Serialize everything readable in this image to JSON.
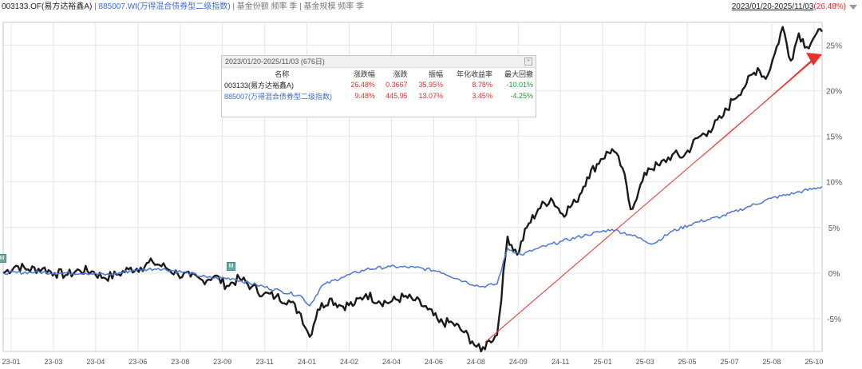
{
  "header": {
    "fund_code": "003133.OF(易方达裕鑫A)",
    "separator": "|",
    "index_code": "885007.WI(万得混合债券型二级指数)",
    "fund_share_label": "基金份额 频率 季",
    "fund_scale_label": "基金规模 频率 季",
    "date_range": "2023/01/20-2025/11/03",
    "total_return": "(26.48%)"
  },
  "stats_panel": {
    "title": "2023/01/20-2025/11/03 (676日)",
    "close_label": "×",
    "columns": [
      "名称",
      "涨跌幅",
      "涨跌",
      "振幅",
      "年化收益率",
      "最大回撤"
    ],
    "rows": [
      {
        "name": "003133(易方达裕鑫A)",
        "change_pct": "26.48%",
        "change": "0.3667",
        "amplitude": "35.95%",
        "annualized": "8.78%",
        "max_drawdown": "-10.01%"
      },
      {
        "name": "885007(万得混合债券型二级指数)",
        "change_pct": "9.48%",
        "change": "445.95",
        "amplitude": "13.07%",
        "annualized": "3.45%",
        "max_drawdown": "-4.25%"
      }
    ]
  },
  "markers": {
    "m1": "M",
    "m2": "M"
  },
  "colors": {
    "fund": "#1a1a1a",
    "index": "#4a78d8",
    "arrow": "#e8322b",
    "grid": "#e4e4e4",
    "positive": "#e0302a",
    "negative": "#1a9a3a"
  },
  "chart_data": {
    "type": "line",
    "yticks": [
      "25%",
      "20%",
      "15%",
      "10%",
      "5%",
      "0%",
      "-5%"
    ],
    "ytick_values": [
      25,
      20,
      15,
      10,
      5,
      0,
      -5
    ],
    "ylim": [
      -8.6,
      27.5
    ],
    "xticks": [
      "23-01",
      "23-03",
      "23-04",
      "23-06",
      "23-08",
      "23-09",
      "23-11",
      "24-01",
      "24-02",
      "24-04",
      "24-06",
      "24-08",
      "24-09",
      "24-11",
      "25-01",
      "25-03",
      "25-05",
      "25-07",
      "25-08",
      "25-10"
    ],
    "series": [
      {
        "name": "003133.OF(易方达裕鑫A)",
        "color": "#1a1a1a",
        "points": [
          [
            "2023-01-20",
            0.0
          ],
          [
            "2023-02-05",
            0.8
          ],
          [
            "2023-02-20",
            0.4
          ],
          [
            "2023-03-10",
            0.5
          ],
          [
            "2023-03-25",
            0.0
          ],
          [
            "2023-04-10",
            -0.2
          ],
          [
            "2023-04-25",
            0.3
          ],
          [
            "2023-05-10",
            0.2
          ],
          [
            "2023-05-25",
            -0.5
          ],
          [
            "2023-06-10",
            -0.2
          ],
          [
            "2023-06-25",
            0.4
          ],
          [
            "2023-07-10",
            0.6
          ],
          [
            "2023-07-25",
            1.2
          ],
          [
            "2023-08-10",
            0.6
          ],
          [
            "2023-08-25",
            -0.1
          ],
          [
            "2023-09-10",
            -0.4
          ],
          [
            "2023-09-25",
            -0.8
          ],
          [
            "2023-10-10",
            -0.3
          ],
          [
            "2023-10-25",
            -1.4
          ],
          [
            "2023-11-10",
            -0.6
          ],
          [
            "2023-11-25",
            -1.5
          ],
          [
            "2023-12-10",
            -2.3
          ],
          [
            "2023-12-25",
            -2.6
          ],
          [
            "2024-01-10",
            -3.0
          ],
          [
            "2024-01-25",
            -4.5
          ],
          [
            "2024-02-05",
            -7.0
          ],
          [
            "2024-02-15",
            -4.0
          ],
          [
            "2024-03-01",
            -2.8
          ],
          [
            "2024-03-15",
            -3.6
          ],
          [
            "2024-04-01",
            -3.4
          ],
          [
            "2024-04-15",
            -2.3
          ],
          [
            "2024-05-01",
            -3.1
          ],
          [
            "2024-05-15",
            -3.2
          ],
          [
            "2024-06-01",
            -2.6
          ],
          [
            "2024-06-15",
            -3.0
          ],
          [
            "2024-07-01",
            -4.0
          ],
          [
            "2024-07-15",
            -5.4
          ],
          [
            "2024-08-01",
            -5.5
          ],
          [
            "2024-08-15",
            -6.5
          ],
          [
            "2024-08-25",
            -7.5
          ],
          [
            "2024-09-05",
            -8.6
          ],
          [
            "2024-09-15",
            -7.4
          ],
          [
            "2024-09-25",
            -6.8
          ],
          [
            "2024-10-08",
            4.0
          ],
          [
            "2024-10-20",
            2.0
          ],
          [
            "2024-11-01",
            5.0
          ],
          [
            "2024-11-15",
            7.0
          ],
          [
            "2024-12-01",
            8.2
          ],
          [
            "2024-12-15",
            6.5
          ],
          [
            "2025-01-01",
            7.8
          ],
          [
            "2025-01-15",
            10.5
          ],
          [
            "2025-02-01",
            12.5
          ],
          [
            "2025-02-15",
            13.6
          ],
          [
            "2025-02-28",
            11.5
          ],
          [
            "2025-03-10",
            7.0
          ],
          [
            "2025-03-20",
            9.0
          ],
          [
            "2025-04-01",
            11.5
          ],
          [
            "2025-04-15",
            11.8
          ],
          [
            "2025-05-01",
            13.0
          ],
          [
            "2025-05-15",
            12.8
          ],
          [
            "2025-06-01",
            14.8
          ],
          [
            "2025-06-15",
            15.6
          ],
          [
            "2025-07-01",
            17.0
          ],
          [
            "2025-07-15",
            19.0
          ],
          [
            "2025-08-01",
            20.8
          ],
          [
            "2025-08-15",
            22.5
          ],
          [
            "2025-08-25",
            21.3
          ],
          [
            "2025-09-05",
            24.0
          ],
          [
            "2025-09-15",
            27.0
          ],
          [
            "2025-09-25",
            23.3
          ],
          [
            "2025-10-05",
            26.3
          ],
          [
            "2025-10-15",
            24.8
          ],
          [
            "2025-10-25",
            26.0
          ],
          [
            "2025-11-03",
            26.48
          ]
        ]
      },
      {
        "name": "885007.WI(万得混合债券型二级指数)",
        "color": "#4a78d8",
        "points": [
          [
            "2023-01-20",
            0.0
          ],
          [
            "2023-03-01",
            0.1
          ],
          [
            "2023-04-01",
            0.0
          ],
          [
            "2023-05-01",
            0.0
          ],
          [
            "2023-06-01",
            -0.2
          ],
          [
            "2023-07-01",
            0.3
          ],
          [
            "2023-08-01",
            0.5
          ],
          [
            "2023-09-01",
            0.1
          ],
          [
            "2023-10-01",
            -0.5
          ],
          [
            "2023-11-01",
            -0.6
          ],
          [
            "2023-12-01",
            -1.3
          ],
          [
            "2024-01-01",
            -2.0
          ],
          [
            "2024-01-25",
            -2.5
          ],
          [
            "2024-02-05",
            -3.6
          ],
          [
            "2024-02-20",
            -1.4
          ],
          [
            "2024-03-15",
            -0.5
          ],
          [
            "2024-04-15",
            0.4
          ],
          [
            "2024-05-15",
            0.7
          ],
          [
            "2024-06-15",
            0.6
          ],
          [
            "2024-07-15",
            0.2
          ],
          [
            "2024-08-15",
            -0.9
          ],
          [
            "2024-09-05",
            -1.5
          ],
          [
            "2024-09-25",
            -1.2
          ],
          [
            "2024-10-08",
            2.7
          ],
          [
            "2024-10-25",
            2.0
          ],
          [
            "2024-11-15",
            2.7
          ],
          [
            "2024-12-15",
            3.5
          ],
          [
            "2025-01-15",
            4.2
          ],
          [
            "2025-02-15",
            4.8
          ],
          [
            "2025-03-10",
            4.2
          ],
          [
            "2025-04-07",
            3.2
          ],
          [
            "2025-05-01",
            4.6
          ],
          [
            "2025-06-01",
            5.6
          ],
          [
            "2025-07-01",
            6.2
          ],
          [
            "2025-08-01",
            7.2
          ],
          [
            "2025-09-01",
            8.2
          ],
          [
            "2025-10-01",
            8.8
          ],
          [
            "2025-11-03",
            9.48
          ]
        ]
      }
    ],
    "annotation_arrow": {
      "from": [
        "2024-09-10",
        -7.6
      ],
      "to": [
        "2025-11-03",
        24.0
      ]
    }
  }
}
